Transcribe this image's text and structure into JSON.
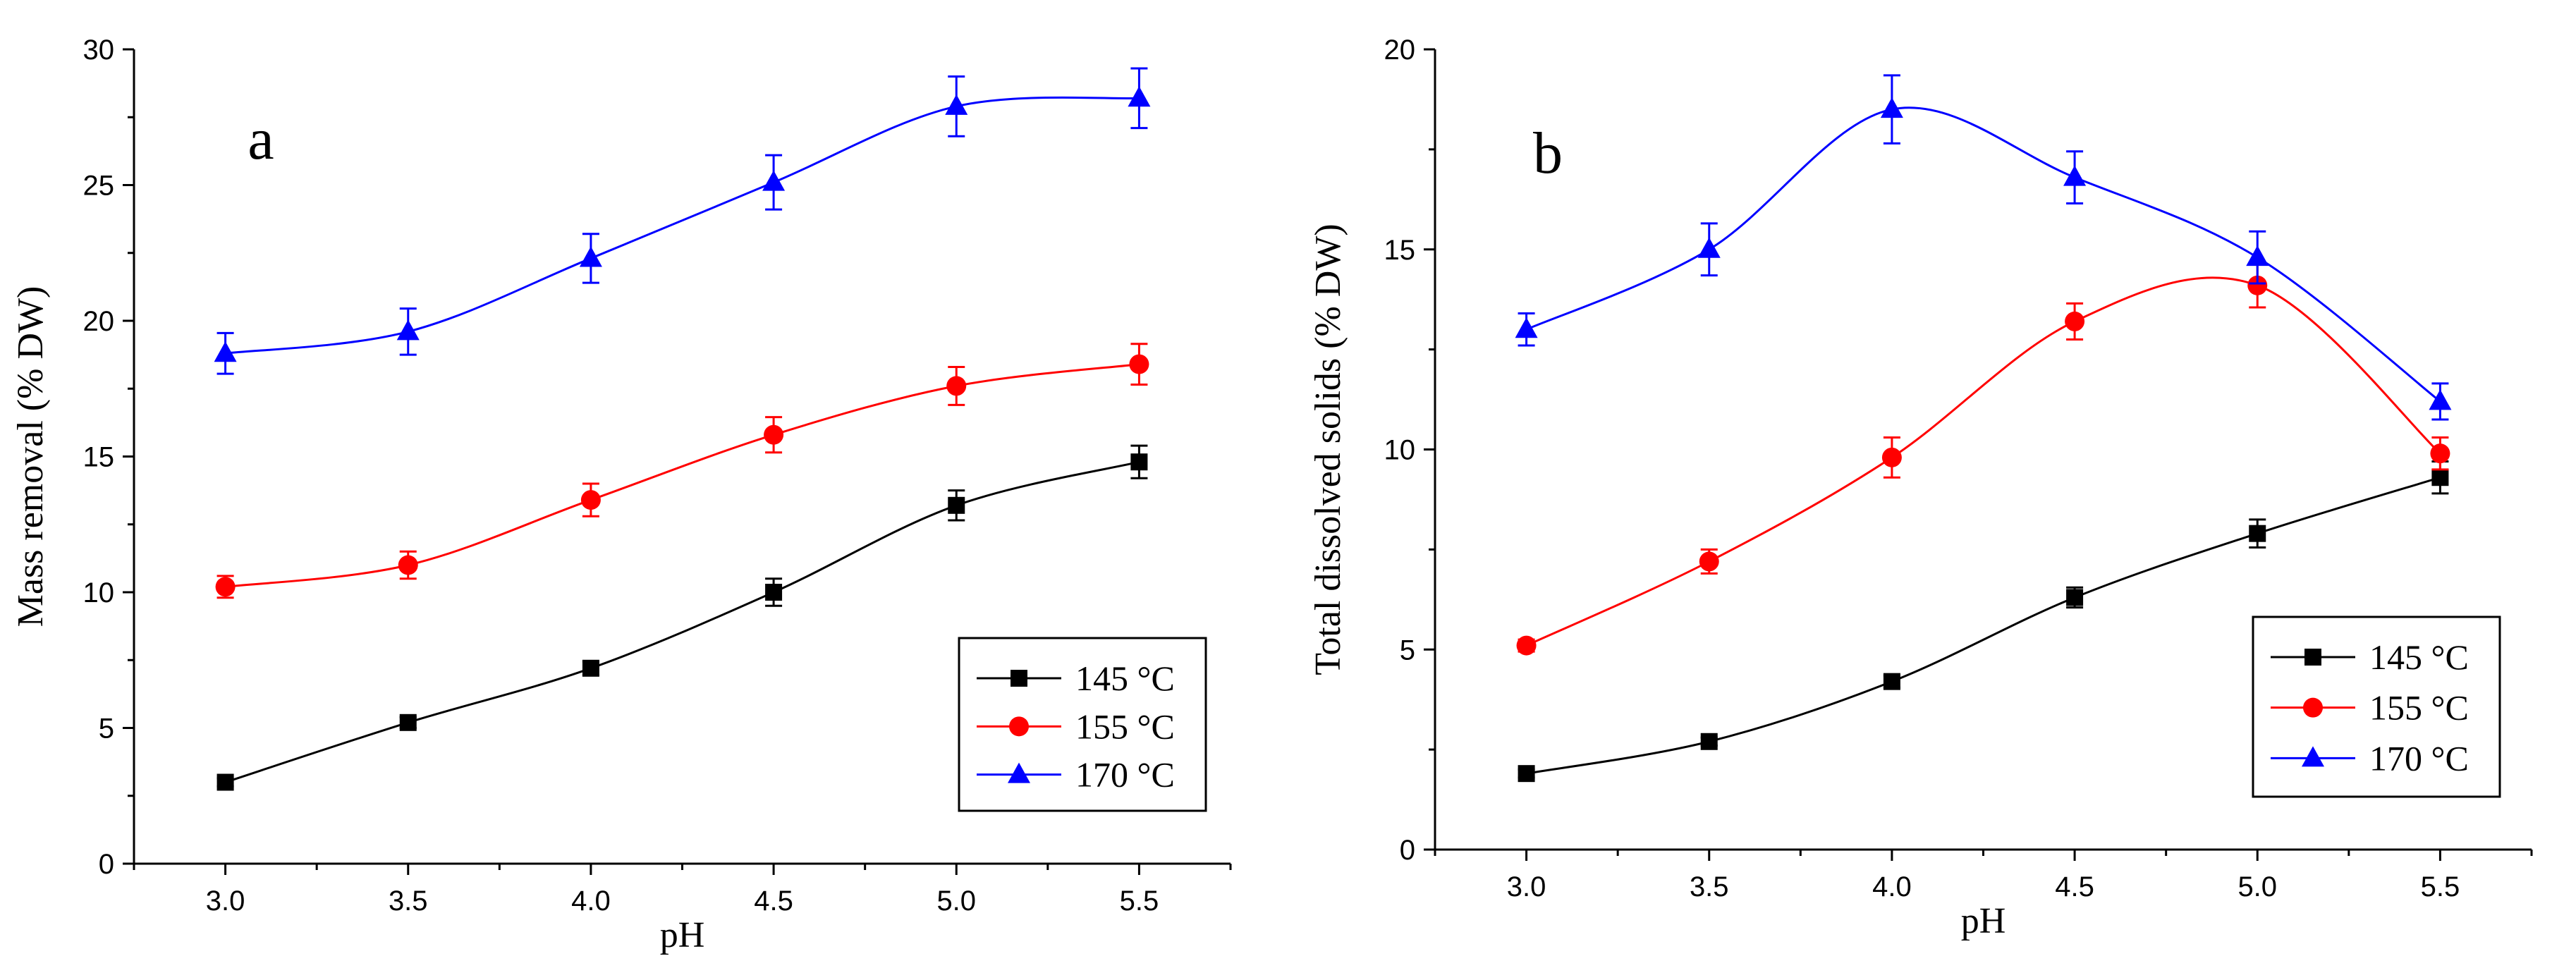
{
  "chart_data": [
    {
      "type": "line",
      "panel_label": "a",
      "title": "",
      "xlabel": "pH",
      "ylabel": "Mass removal (% DW)",
      "x": [
        3.0,
        3.5,
        4.0,
        4.5,
        5.0,
        5.5
      ],
      "x_ticks": [
        "3.0",
        "3.5",
        "4.0",
        "4.5",
        "5.0",
        "5.5"
      ],
      "xlim": [
        2.75,
        5.75
      ],
      "ylim": [
        0,
        30
      ],
      "y_ticks": [
        "0",
        "5",
        "10",
        "15",
        "20",
        "25",
        "30"
      ],
      "grid": false,
      "legend_position": "bottom-right",
      "series": [
        {
          "name": "145 °C",
          "color": "#000000",
          "marker": "square",
          "values": [
            3.0,
            5.2,
            7.2,
            10.0,
            13.2,
            14.8
          ],
          "errors": [
            0.15,
            0.2,
            0.25,
            0.5,
            0.55,
            0.6
          ]
        },
        {
          "name": "155 °C",
          "color": "#ff0000",
          "marker": "circle",
          "values": [
            10.2,
            11.0,
            13.4,
            15.8,
            17.6,
            18.4
          ],
          "errors": [
            0.4,
            0.5,
            0.6,
            0.65,
            0.7,
            0.75
          ]
        },
        {
          "name": "170 °C",
          "color": "#0000ff",
          "marker": "triangle",
          "values": [
            18.8,
            19.6,
            22.3,
            25.1,
            27.9,
            28.2
          ],
          "errors": [
            0.75,
            0.85,
            0.9,
            1.0,
            1.1,
            1.1
          ]
        }
      ]
    },
    {
      "type": "line",
      "panel_label": "b",
      "title": "",
      "xlabel": "pH",
      "ylabel": "Total dissolved solids (% DW)",
      "x": [
        3.0,
        3.5,
        4.0,
        4.5,
        5.0,
        5.5
      ],
      "x_ticks": [
        "3.0",
        "3.5",
        "4.0",
        "4.5",
        "5.0",
        "5.5"
      ],
      "xlim": [
        2.75,
        5.75
      ],
      "ylim": [
        0,
        20
      ],
      "y_ticks": [
        "0",
        "5",
        "10",
        "15",
        "20"
      ],
      "grid": false,
      "legend_position": "bottom-right",
      "series": [
        {
          "name": "145 °C",
          "color": "#000000",
          "marker": "square",
          "values": [
            1.9,
            2.7,
            4.2,
            6.3,
            7.9,
            9.3
          ],
          "errors": [
            0.1,
            0.1,
            0.15,
            0.25,
            0.35,
            0.4
          ]
        },
        {
          "name": "155 °C",
          "color": "#ff0000",
          "marker": "circle",
          "values": [
            5.1,
            7.2,
            9.8,
            13.2,
            14.1,
            9.9
          ],
          "errors": [
            0.15,
            0.3,
            0.5,
            0.45,
            0.55,
            0.4
          ]
        },
        {
          "name": "170 °C",
          "color": "#0000ff",
          "marker": "triangle",
          "values": [
            13.0,
            15.0,
            18.5,
            16.8,
            14.8,
            11.2
          ],
          "errors": [
            0.4,
            0.65,
            0.85,
            0.65,
            0.65,
            0.45
          ]
        }
      ]
    }
  ]
}
